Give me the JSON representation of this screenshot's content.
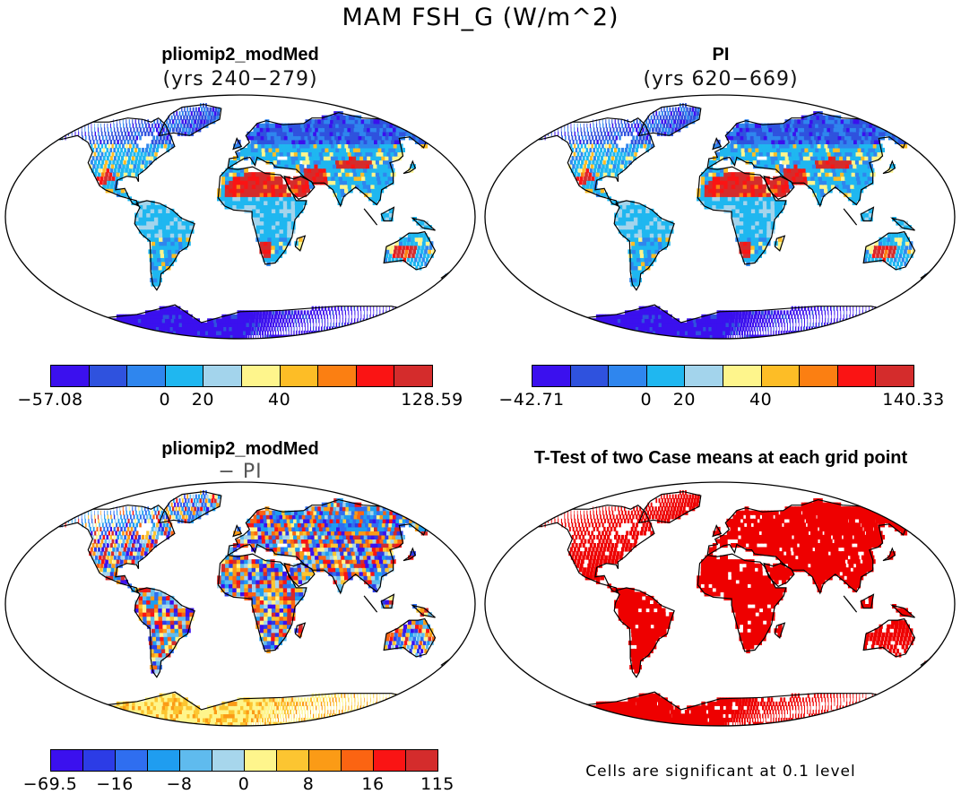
{
  "title": "MAM FSH_G (W/m^2)",
  "palette": [
    "#3b10ee",
    "#2f52de",
    "#2f86ee",
    "#1fb7f0",
    "#a3d4ec",
    "#fef58c",
    "#fdbd26",
    "#fb7f12",
    "#fa1414",
    "#d42c2c"
  ],
  "diff_palette": [
    "#3b10ee",
    "#2c3ce6",
    "#2f6ef0",
    "#1f9df0",
    "#5fbbee",
    "#a7d6ec",
    "#fef58c",
    "#fcc531",
    "#fb9b16",
    "#fb6412",
    "#fa1414",
    "#d42c2c"
  ],
  "land_ocean": "#ffffff",
  "ttest_color": "#ee0000",
  "panels": {
    "top_left": {
      "title": "pliomip2_modMed",
      "subtitle": "(yrs 240−279)",
      "colorbar_ticks": [
        "−57.08",
        "0",
        "20",
        "40",
        "128.59"
      ]
    },
    "top_right": {
      "title": "PI",
      "subtitle": "(yrs 620−669)",
      "colorbar_ticks": [
        "−42.71",
        "0",
        "20",
        "40",
        "140.33"
      ]
    },
    "bottom_left": {
      "title": "pliomip2_modMed",
      "subtitle": "− PI",
      "colorbar_ticks": [
        "−69.5",
        "−16",
        "−8",
        "0",
        "8",
        "16",
        "115"
      ]
    },
    "bottom_right": {
      "title": "T-Test of two Case means at each grid point",
      "note": "Cells are significant at 0.1 level"
    }
  }
}
